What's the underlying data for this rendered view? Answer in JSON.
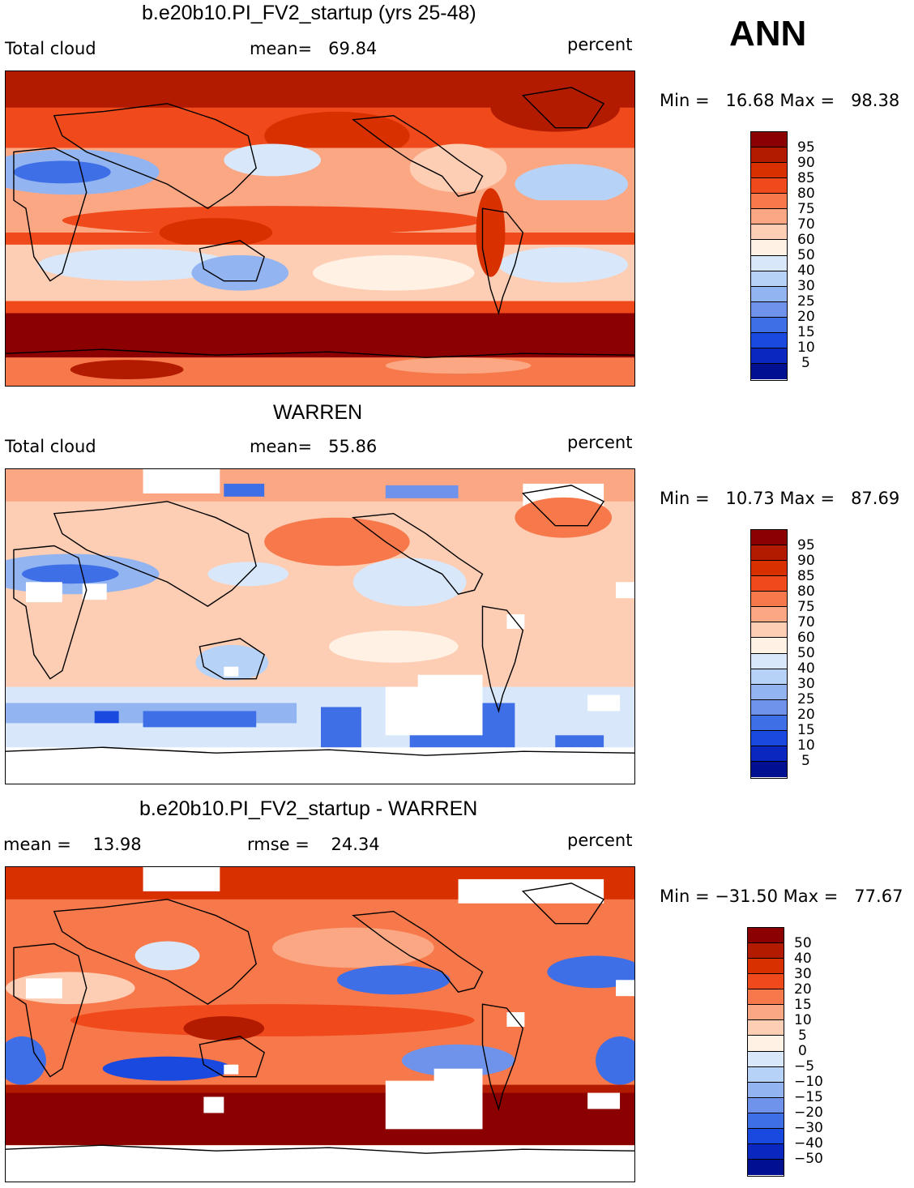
{
  "corner_label": "ANN",
  "panels": [
    {
      "title": "b.e20b10.PI_FV2_startup (yrs 25-48)",
      "left_label": "Total cloud",
      "center_label": "mean=   69.84",
      "units": "percent",
      "minmax": "Min =   16.68 Max =   98.38",
      "colorbar": {
        "colors": [
          "#8b0000",
          "#b31b00",
          "#d93000",
          "#f04a1c",
          "#f7784a",
          "#fba783",
          "#fdcdb4",
          "#fff1e4",
          "#d8e8fa",
          "#b7d2f7",
          "#92b4f0",
          "#6f92eb",
          "#3f6fe6",
          "#1a49e0",
          "#0a27c0",
          "#001090"
        ],
        "labels": [
          "95",
          "90",
          "85",
          "80",
          "75",
          "70",
          "60",
          "50",
          "40",
          "30",
          "25",
          "20",
          "15",
          "10",
          "5"
        ]
      }
    },
    {
      "title": "WARREN",
      "left_label": "Total cloud",
      "center_label": "mean=   55.86",
      "units": "percent",
      "minmax": "Min =   10.73 Max =   87.69",
      "colorbar": {
        "colors": [
          "#8b0000",
          "#b31b00",
          "#d93000",
          "#f04a1c",
          "#f7784a",
          "#fba783",
          "#fdcdb4",
          "#fff1e4",
          "#d8e8fa",
          "#b7d2f7",
          "#92b4f0",
          "#6f92eb",
          "#3f6fe6",
          "#1a49e0",
          "#0a27c0",
          "#001090"
        ],
        "labels": [
          "95",
          "90",
          "85",
          "80",
          "75",
          "70",
          "60",
          "50",
          "40",
          "30",
          "25",
          "20",
          "15",
          "10",
          "5"
        ]
      }
    },
    {
      "title": "b.e20b10.PI_FV2_startup - WARREN",
      "left_label": "mean =    13.98",
      "center_label": "rmse =    24.34",
      "units": "percent",
      "minmax": "Min = −31.50 Max =   77.67",
      "colorbar": {
        "colors": [
          "#8b0000",
          "#b31b00",
          "#d93000",
          "#f04a1c",
          "#f7784a",
          "#fba783",
          "#fdcdb4",
          "#fff1e4",
          "#d8e8fa",
          "#b7d2f7",
          "#92b4f0",
          "#6f92eb",
          "#3f6fe6",
          "#1a49e0",
          "#0a27c0",
          "#001090"
        ],
        "labels": [
          "50",
          "40",
          "30",
          "20",
          "15",
          "10",
          "5",
          "0",
          "−5",
          "−10",
          "−15",
          "−20",
          "−30",
          "−40",
          "−50"
        ]
      }
    }
  ]
}
